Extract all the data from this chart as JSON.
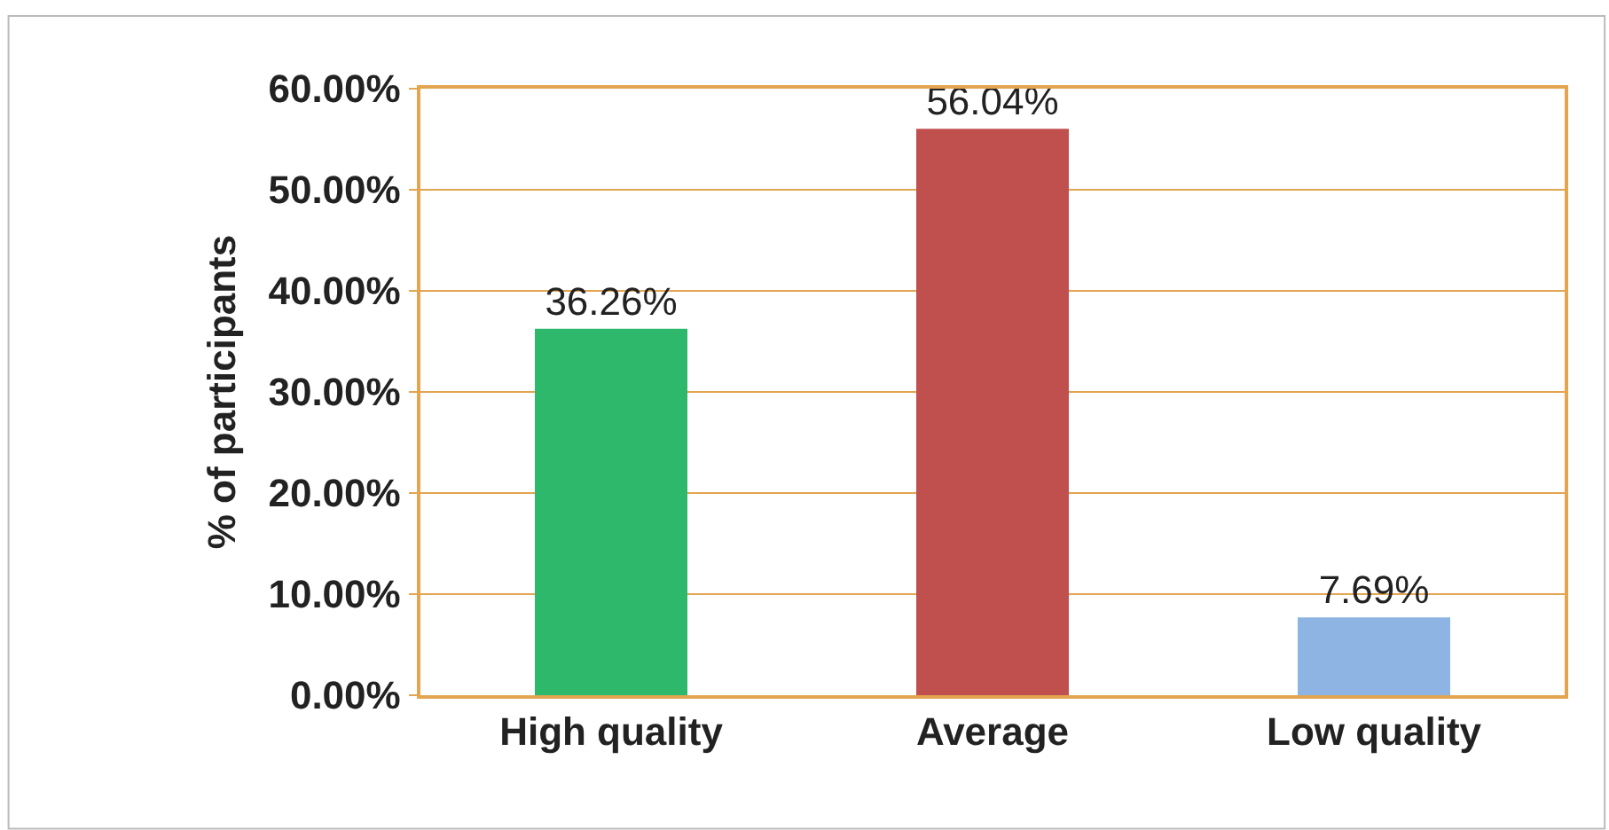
{
  "chart_data": {
    "type": "bar",
    "ylabel": "% of participants",
    "categories": [
      "High quality",
      "Average",
      "Low quality"
    ],
    "values": [
      36.26,
      56.04,
      7.69
    ],
    "colors": [
      "#2db86b",
      "#c0504d",
      "#8db4e2"
    ],
    "value_labels": [
      "36.26%",
      "56.04%",
      "7.69%"
    ],
    "ylim": [
      0,
      60
    ],
    "yticks": [
      {
        "value": 0,
        "label": "0.00%"
      },
      {
        "value": 10,
        "label": "10.00%"
      },
      {
        "value": 20,
        "label": "20.00%"
      },
      {
        "value": 30,
        "label": "30.00%"
      },
      {
        "value": 40,
        "label": "40.00%"
      },
      {
        "value": 50,
        "label": "50.00%"
      },
      {
        "value": 60,
        "label": "60.00%"
      }
    ],
    "grid": "y"
  }
}
